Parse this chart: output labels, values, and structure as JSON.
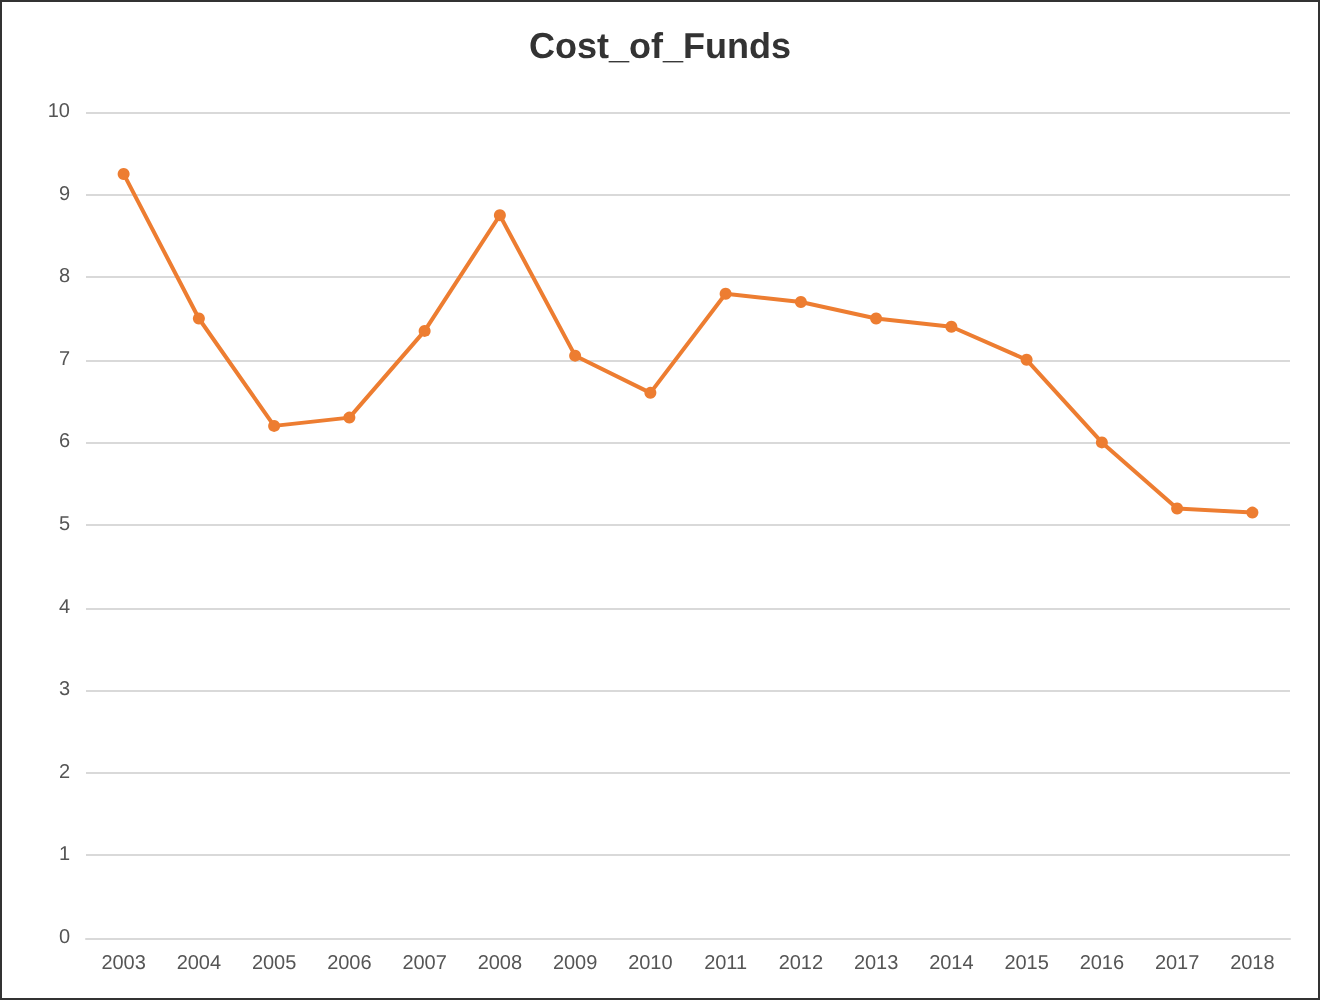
{
  "chart_data": {
    "type": "line",
    "title": "Cost_of_Funds",
    "categories": [
      "2003",
      "2004",
      "2005",
      "2006",
      "2007",
      "2008",
      "2009",
      "2010",
      "2011",
      "2012",
      "2013",
      "2014",
      "2015",
      "2016",
      "2017",
      "2018"
    ],
    "series": [
      {
        "color": "#ed7d31",
        "values": [
          9.25,
          7.5,
          6.2,
          6.3,
          7.35,
          8.75,
          7.05,
          6.6,
          7.8,
          7.7,
          7.5,
          7.4,
          7.0,
          6.0,
          5.2,
          5.15
        ]
      }
    ],
    "ylim": [
      0,
      10
    ],
    "yticks": [
      0,
      1,
      2,
      3,
      4,
      5,
      6,
      7,
      8,
      9,
      10
    ],
    "grid": "y",
    "marker": "circle",
    "line_style": "solid"
  }
}
